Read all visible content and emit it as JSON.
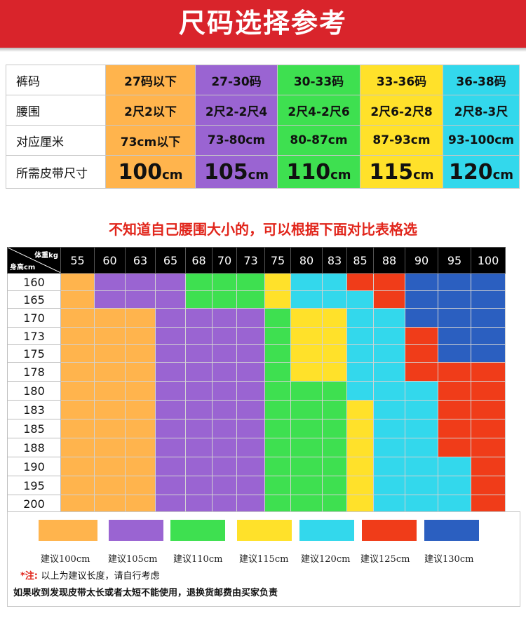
{
  "title": "尺码选择参考",
  "size_table": {
    "row_labels": [
      "裤码",
      "腰围",
      "对应厘米",
      "所需皮带尺寸"
    ],
    "columns": [
      {
        "color": "#ffb44d",
        "pant": "27码以下",
        "waist": "2尺2以下",
        "cm": "73cm以下",
        "belt": "100",
        "unit": "cm"
      },
      {
        "color": "#9a64d2",
        "pant": "27-30码",
        "waist": "2尺2-2尺4",
        "cm": "73-80cm",
        "belt": "105",
        "unit": "cm"
      },
      {
        "color": "#3ee050",
        "pant": "30-33码",
        "waist": "2尺4-2尺6",
        "cm": "80-87cm",
        "belt": "110",
        "unit": "cm"
      },
      {
        "color": "#ffe12a",
        "pant": "33-36码",
        "waist": "2尺6-2尺8",
        "cm": "87-93cm",
        "belt": "115",
        "unit": "cm"
      },
      {
        "color": "#33d8ec",
        "pant": "36-38码",
        "waist": "2尺8-3尺",
        "cm": "93-100cm",
        "belt": "120",
        "unit": "cm"
      }
    ]
  },
  "subtitle": "不知道自己腰围大小的，可以根据下面对比表格选",
  "lookup": {
    "corner_weight": "体重kg",
    "corner_height": "身高cm",
    "weights": [
      "55",
      "60",
      "63",
      "65",
      "68",
      "70",
      "73",
      "75",
      "80",
      "83",
      "85",
      "88",
      "90",
      "95",
      "100"
    ],
    "heights": [
      "160",
      "165",
      "170",
      "173",
      "175",
      "178",
      "180",
      "183",
      "185",
      "188",
      "190",
      "195",
      "200"
    ],
    "colors": {
      "A": "#ffb44d",
      "B": "#9a64d2",
      "C": "#3ee050",
      "D": "#ffe12a",
      "E": "#33d8ec",
      "F": "#f03c19",
      "G": "#2b5fc0"
    },
    "grid": [
      [
        "A",
        "B",
        "B",
        "B",
        "C",
        "C",
        "C",
        "D",
        "E",
        "E",
        "F",
        "F",
        "G",
        "G",
        "G"
      ],
      [
        "A",
        "B",
        "B",
        "B",
        "C",
        "C",
        "C",
        "D",
        "E",
        "E",
        "E",
        "F",
        "G",
        "G",
        "G"
      ],
      [
        "A",
        "A",
        "A",
        "B",
        "B",
        "B",
        "B",
        "C",
        "D",
        "D",
        "E",
        "E",
        "G",
        "G",
        "G"
      ],
      [
        "A",
        "A",
        "A",
        "B",
        "B",
        "B",
        "B",
        "C",
        "D",
        "D",
        "E",
        "E",
        "F",
        "G",
        "G"
      ],
      [
        "A",
        "A",
        "A",
        "B",
        "B",
        "B",
        "B",
        "C",
        "D",
        "D",
        "E",
        "E",
        "F",
        "G",
        "G"
      ],
      [
        "A",
        "A",
        "A",
        "B",
        "B",
        "B",
        "B",
        "C",
        "D",
        "D",
        "E",
        "E",
        "F",
        "F",
        "F"
      ],
      [
        "A",
        "A",
        "A",
        "B",
        "B",
        "B",
        "B",
        "C",
        "C",
        "C",
        "E",
        "E",
        "E",
        "F",
        "F"
      ],
      [
        "A",
        "A",
        "A",
        "B",
        "B",
        "B",
        "B",
        "C",
        "C",
        "C",
        "D",
        "E",
        "E",
        "F",
        "F"
      ],
      [
        "A",
        "A",
        "A",
        "B",
        "B",
        "B",
        "B",
        "C",
        "C",
        "C",
        "D",
        "E",
        "E",
        "F",
        "F"
      ],
      [
        "A",
        "A",
        "A",
        "B",
        "B",
        "B",
        "B",
        "C",
        "C",
        "C",
        "D",
        "E",
        "E",
        "F",
        "F"
      ],
      [
        "A",
        "A",
        "A",
        "B",
        "B",
        "B",
        "B",
        "C",
        "C",
        "C",
        "D",
        "E",
        "E",
        "E",
        "F"
      ],
      [
        "A",
        "A",
        "A",
        "B",
        "B",
        "B",
        "B",
        "C",
        "C",
        "C",
        "D",
        "E",
        "E",
        "E",
        "F"
      ],
      [
        "A",
        "A",
        "A",
        "B",
        "B",
        "B",
        "B",
        "C",
        "C",
        "C",
        "D",
        "E",
        "E",
        "E",
        "F"
      ]
    ]
  },
  "legend": [
    {
      "color": "#ffb44d",
      "label": "建议100cm"
    },
    {
      "color": "#9a64d2",
      "label": "建议105cm"
    },
    {
      "color": "#3ee050",
      "label": "建议110cm"
    },
    {
      "color": "#ffe12a",
      "label": "建议115cm"
    },
    {
      "color": "#33d8ec",
      "label": "建议120cm"
    },
    {
      "color": "#f03c19",
      "label": "建议125cm"
    },
    {
      "color": "#2b5fc0",
      "label": "建议130cm"
    }
  ],
  "notes": {
    "star": "*注:",
    "note1": "以上为建议长度，请自行考虑",
    "note2": "如果收到发现皮带太长或者太短不能使用，退换货邮费由买家负责"
  }
}
